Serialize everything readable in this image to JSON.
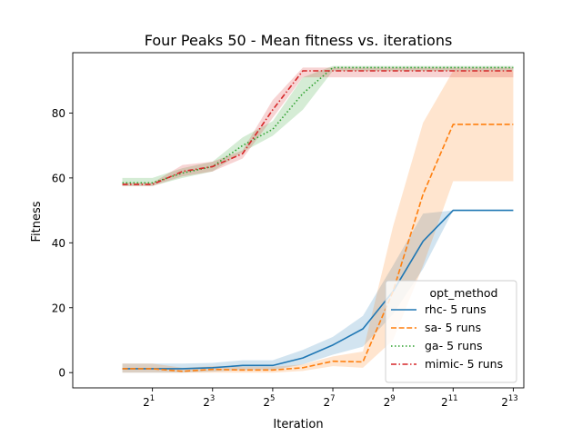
{
  "chart_data": {
    "type": "line",
    "title": "Four Peaks 50 - Mean fitness vs. iterations",
    "xlabel": "Iteration",
    "ylabel": "Fitness",
    "x_scale": "log2",
    "xlim_log2": [
      -1.65,
      13.35
    ],
    "ylim": [
      -4.7,
      98.6
    ],
    "x_ticks": [
      {
        "exp": 1,
        "base": "2",
        "sup": "1"
      },
      {
        "exp": 3,
        "base": "2",
        "sup": "3"
      },
      {
        "exp": 5,
        "base": "2",
        "sup": "5"
      },
      {
        "exp": 7,
        "base": "2",
        "sup": "7"
      },
      {
        "exp": 9,
        "base": "2",
        "sup": "9"
      },
      {
        "exp": 11,
        "base": "2",
        "sup": "11"
      },
      {
        "exp": 13,
        "base": "2",
        "sup": "13"
      }
    ],
    "y_ticks": [
      0,
      20,
      40,
      60,
      80
    ],
    "grid": false,
    "legend": {
      "title": "opt_method",
      "placement": "lower-right"
    },
    "x": [
      1,
      2,
      4,
      8,
      16,
      32,
      64,
      128,
      256,
      512,
      1024,
      2048,
      4096,
      8192
    ],
    "series": [
      {
        "name": "rhc- 5 runs",
        "color": "#1f77b4",
        "dash": "solid",
        "values": [
          1.2,
          1.2,
          1.2,
          1.5,
          2.2,
          2.2,
          4.5,
          8.5,
          13.5,
          25,
          40.5,
          50,
          50,
          50
        ],
        "lower": [
          0,
          0,
          0,
          0.3,
          0.8,
          0.8,
          2.5,
          5.5,
          8,
          18,
          32,
          50,
          50,
          50
        ],
        "upper": [
          2.8,
          2.8,
          2.8,
          3,
          3.8,
          3.8,
          7,
          11,
          17.5,
          33,
          49,
          50,
          50,
          50
        ]
      },
      {
        "name": "sa- 5 runs",
        "color": "#ff7f0e",
        "dash": "dashed",
        "values": [
          1.2,
          1.2,
          0.4,
          1.0,
          0.8,
          0.8,
          1.5,
          3.5,
          3.3,
          25,
          55,
          76.5,
          76.5,
          76.5
        ],
        "lower": [
          0,
          0,
          0,
          0,
          0,
          0,
          0.5,
          2,
          1.5,
          10,
          33,
          59,
          59,
          59
        ],
        "upper": [
          2.8,
          2.8,
          1.5,
          2,
          1.8,
          1.8,
          2.5,
          5,
          6.5,
          45,
          77,
          93,
          93,
          93
        ]
      },
      {
        "name": "ga- 5 runs",
        "color": "#2ca02c",
        "dash": "dotted",
        "values": [
          58.5,
          58.5,
          61.5,
          63.5,
          70,
          75,
          86,
          94,
          94,
          94,
          94,
          94,
          94,
          94
        ],
        "lower": [
          57.5,
          57.5,
          60,
          62,
          68,
          73,
          81,
          93,
          93,
          93,
          93,
          93,
          93,
          93
        ],
        "upper": [
          60,
          60,
          63,
          65,
          72.5,
          77.5,
          91,
          94.5,
          94.5,
          94.5,
          94.5,
          94.5,
          94.5,
          94.5
        ]
      },
      {
        "name": "mimic- 5 runs",
        "color": "#d62728",
        "dash": "dashdot",
        "values": [
          58,
          58,
          62,
          63.5,
          67.5,
          81,
          93,
          93,
          93,
          93,
          93,
          93,
          93,
          93
        ],
        "lower": [
          57.5,
          57.5,
          60.5,
          62,
          66,
          78.5,
          91,
          91,
          91,
          91,
          91,
          91,
          91,
          91
        ],
        "upper": [
          58.5,
          58.5,
          64,
          65,
          68.5,
          84,
          94,
          94,
          94,
          94,
          94,
          94,
          94,
          94
        ]
      }
    ]
  }
}
